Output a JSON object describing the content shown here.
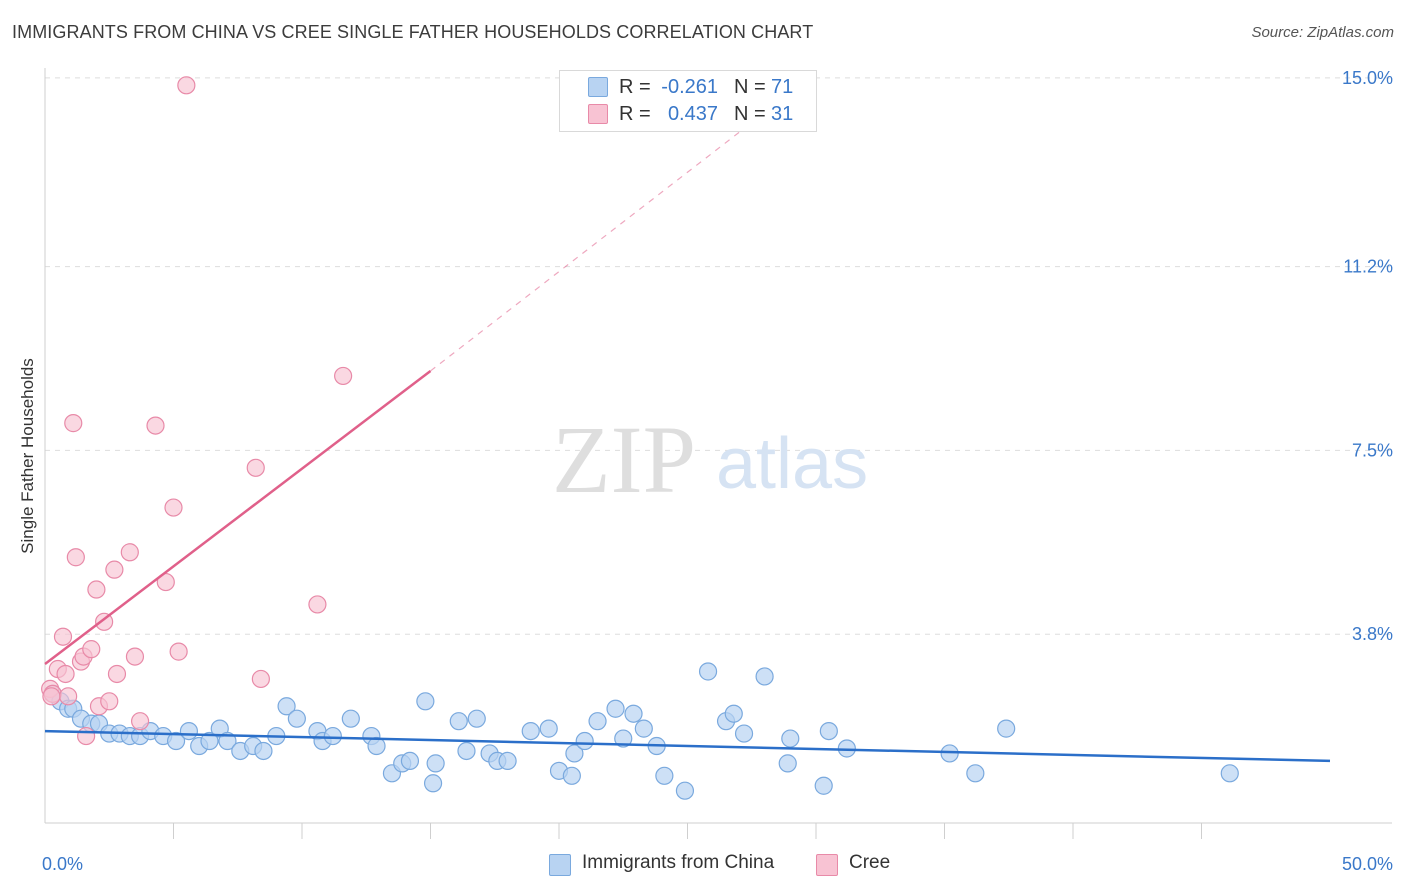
{
  "header": {
    "title": "IMMIGRANTS FROM CHINA VS CREE SINGLE FATHER HOUSEHOLDS CORRELATION CHART",
    "source": "Source: ZipAtlas.com"
  },
  "watermark": {
    "part1": "ZIP",
    "part2": "atlas"
  },
  "legend": {
    "rows": [
      {
        "r_label": "R =",
        "r_value": "-0.261",
        "n_label": "N =",
        "n_value": "71"
      },
      {
        "r_label": "R =",
        "r_value": "0.437",
        "n_label": "N =",
        "n_value": "31"
      }
    ]
  },
  "bottom_legend": [
    {
      "label": "Immigrants from China"
    },
    {
      "label": "Cree"
    }
  ],
  "colors": {
    "china_fill": "#b8d3f2",
    "china_stroke": "#7aa9de",
    "china_line": "#2b6fc9",
    "cree_fill": "#f8c3d3",
    "cree_stroke": "#e88aa8",
    "cree_line": "#e0608a",
    "grid": "#dddddd",
    "tick_text": "#3a78c9"
  },
  "chart_data": {
    "type": "scatter",
    "title": "IMMIGRANTS FROM CHINA VS CREE SINGLE FATHER HOUSEHOLDS CORRELATION CHART",
    "xlabel": "",
    "ylabel": "Single Father Households",
    "xlim": [
      0,
      50
    ],
    "ylim": [
      0,
      15.4
    ],
    "x_tick_labels": [
      {
        "value": 0,
        "label": "0.0%"
      },
      {
        "value": 50,
        "label": "50.0%"
      }
    ],
    "y_tick_labels": [
      {
        "value": 3.8,
        "label": "3.8%"
      },
      {
        "value": 7.5,
        "label": "7.5%"
      },
      {
        "value": 11.2,
        "label": "11.2%"
      },
      {
        "value": 15.0,
        "label": "15.0%"
      }
    ],
    "y_gridlines": [
      3.8,
      7.5,
      11.2,
      15.0
    ],
    "x_minor_ticks": [
      5,
      10,
      15,
      20,
      25,
      30,
      35,
      40,
      45
    ],
    "series": [
      {
        "name": "Immigrants from China",
        "r": -0.261,
        "n": 71,
        "trend": {
          "x": [
            0,
            50
          ],
          "y": [
            1.85,
            1.25
          ]
        },
        "points": [
          [
            0.3,
            2.6
          ],
          [
            0.6,
            2.45
          ],
          [
            0.9,
            2.3
          ],
          [
            1.1,
            2.3
          ],
          [
            1.4,
            2.1
          ],
          [
            1.8,
            2.0
          ],
          [
            2.1,
            2.0
          ],
          [
            2.5,
            1.8
          ],
          [
            2.9,
            1.8
          ],
          [
            3.3,
            1.75
          ],
          [
            3.7,
            1.75
          ],
          [
            4.1,
            1.85
          ],
          [
            4.6,
            1.75
          ],
          [
            5.1,
            1.65
          ],
          [
            5.6,
            1.85
          ],
          [
            6.0,
            1.55
          ],
          [
            6.4,
            1.65
          ],
          [
            6.8,
            1.9
          ],
          [
            7.1,
            1.65
          ],
          [
            7.6,
            1.45
          ],
          [
            8.1,
            1.55
          ],
          [
            8.5,
            1.45
          ],
          [
            9.0,
            1.75
          ],
          [
            9.4,
            2.35
          ],
          [
            9.8,
            2.1
          ],
          [
            10.6,
            1.85
          ],
          [
            10.8,
            1.65
          ],
          [
            11.2,
            1.75
          ],
          [
            11.9,
            2.1
          ],
          [
            12.7,
            1.75
          ],
          [
            12.9,
            1.55
          ],
          [
            13.5,
            1.0
          ],
          [
            13.9,
            1.2
          ],
          [
            14.2,
            1.25
          ],
          [
            14.8,
            2.45
          ],
          [
            15.1,
            0.8
          ],
          [
            15.2,
            1.2
          ],
          [
            16.1,
            2.05
          ],
          [
            16.4,
            1.45
          ],
          [
            16.8,
            2.1
          ],
          [
            17.3,
            1.4
          ],
          [
            17.6,
            1.25
          ],
          [
            18.0,
            1.25
          ],
          [
            18.9,
            1.85
          ],
          [
            19.6,
            1.9
          ],
          [
            20.0,
            1.05
          ],
          [
            20.5,
            0.95
          ],
          [
            20.6,
            1.4
          ],
          [
            21.0,
            1.65
          ],
          [
            21.5,
            2.05
          ],
          [
            22.2,
            2.3
          ],
          [
            22.5,
            1.7
          ],
          [
            22.9,
            2.2
          ],
          [
            23.3,
            1.9
          ],
          [
            23.8,
            1.55
          ],
          [
            24.1,
            0.95
          ],
          [
            24.9,
            0.65
          ],
          [
            25.8,
            3.05
          ],
          [
            26.5,
            2.05
          ],
          [
            26.8,
            2.2
          ],
          [
            27.2,
            1.8
          ],
          [
            28.0,
            2.95
          ],
          [
            28.9,
            1.2
          ],
          [
            29.0,
            1.7
          ],
          [
            30.3,
            0.75
          ],
          [
            30.5,
            1.85
          ],
          [
            31.2,
            1.5
          ],
          [
            35.2,
            1.4
          ],
          [
            36.2,
            1.0
          ],
          [
            37.4,
            1.9
          ],
          [
            46.1,
            1.0
          ]
        ]
      },
      {
        "name": "Cree",
        "r": 0.437,
        "n": 31,
        "trend": {
          "x": [
            0,
            15
          ],
          "y": [
            3.2,
            9.1
          ]
        },
        "trend_extension": {
          "x": [
            15,
            28.0
          ],
          "y": [
            9.1,
            14.3
          ]
        },
        "points": [
          [
            0.2,
            2.7
          ],
          [
            0.3,
            2.6
          ],
          [
            0.5,
            3.1
          ],
          [
            0.7,
            3.75
          ],
          [
            0.8,
            3.0
          ],
          [
            0.9,
            2.55
          ],
          [
            1.1,
            8.05
          ],
          [
            1.2,
            5.35
          ],
          [
            1.4,
            3.25
          ],
          [
            1.5,
            3.35
          ],
          [
            1.6,
            1.75
          ],
          [
            1.8,
            3.5
          ],
          [
            2.0,
            4.7
          ],
          [
            2.1,
            2.35
          ],
          [
            2.3,
            4.05
          ],
          [
            2.5,
            2.45
          ],
          [
            2.7,
            5.1
          ],
          [
            2.8,
            3.0
          ],
          [
            3.3,
            5.45
          ],
          [
            3.5,
            3.35
          ],
          [
            3.7,
            2.05
          ],
          [
            4.3,
            8.0
          ],
          [
            4.7,
            4.85
          ],
          [
            5.0,
            6.35
          ],
          [
            5.2,
            3.45
          ],
          [
            5.5,
            14.85
          ],
          [
            8.2,
            7.15
          ],
          [
            8.4,
            2.9
          ],
          [
            10.6,
            4.4
          ],
          [
            11.6,
            9.0
          ],
          [
            0.25,
            2.55
          ]
        ]
      }
    ]
  }
}
